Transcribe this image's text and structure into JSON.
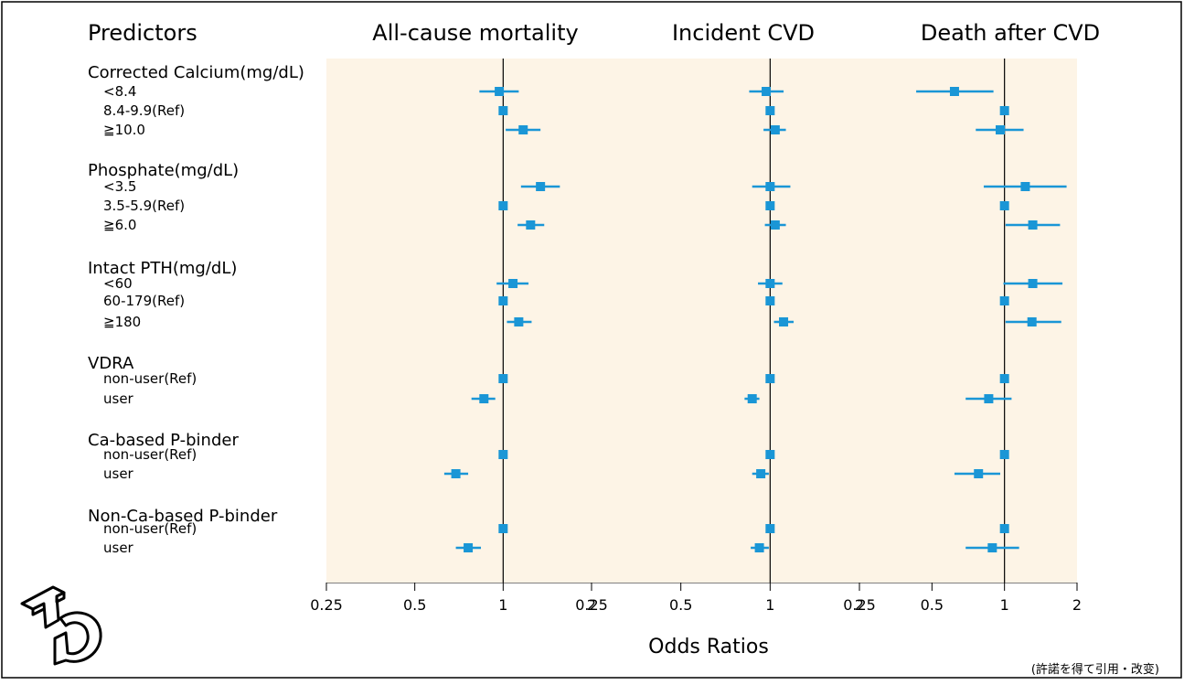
{
  "headers": {
    "predictors": "Predictors",
    "panels": [
      "All-cause mortality",
      "Incident CVD",
      "Death after CVD"
    ]
  },
  "groups": [
    {
      "title": "Corrected Calcium(mg/dL)",
      "rows": [
        "<8.4",
        "8.4-9.9(Ref)",
        "≧10.0"
      ]
    },
    {
      "title": "Phosphate(mg/dL)",
      "rows": [
        "<3.5",
        "3.5-5.9(Ref)",
        "≧6.0"
      ]
    },
    {
      "title": "Intact PTH(mg/dL)",
      "rows": [
        "<60",
        "60-179(Ref)",
        "≧180"
      ]
    },
    {
      "title": "VDRA",
      "rows": [
        "non-user(Ref)",
        "user"
      ]
    },
    {
      "title": "Ca-based P-binder",
      "rows": [
        "non-user(Ref)",
        "user"
      ]
    },
    {
      "title": "Non-Ca-based P-binder",
      "rows": [
        "non-user(Ref)",
        "user"
      ]
    }
  ],
  "x_axis_label": "Odds Ratios",
  "footnote": "(許諾を得て引用・改变)",
  "colors": {
    "marker": "#1a96d6",
    "panel_background": "#fdf4e6",
    "reference_line": "#000000"
  },
  "logo": {
    "icon": "logo-icon",
    "text": "TD"
  },
  "chart_data": {
    "type": "scatter",
    "subtype": "forest-plot",
    "x_scale": "log",
    "xlim": [
      0.25,
      2
    ],
    "x_ticks": [
      0.25,
      0.5,
      1,
      2
    ],
    "x_tick_labels": [
      "0.25",
      "0.5",
      "1",
      "2"
    ],
    "reference_value": 1,
    "grid": false,
    "xlabel": "Odds Ratios",
    "row_labels": [
      "<8.4",
      "8.4-9.9(Ref)",
      "≧10.0",
      "<3.5",
      "3.5-5.9(Ref)",
      "≧6.0",
      "<60",
      "60-179(Ref)",
      "≧180",
      "non-user(Ref)",
      "user",
      "non-user(Ref)",
      "user",
      "non-user(Ref)",
      "user"
    ],
    "panels": [
      {
        "name": "All-cause mortality",
        "points": [
          {
            "or": 0.97,
            "lo": 0.83,
            "hi": 1.13
          },
          {
            "or": 1.0
          },
          {
            "or": 1.17,
            "lo": 1.02,
            "hi": 1.34
          },
          {
            "or": 1.34,
            "lo": 1.15,
            "hi": 1.56
          },
          {
            "or": 1.0
          },
          {
            "or": 1.24,
            "lo": 1.12,
            "hi": 1.38
          },
          {
            "or": 1.08,
            "lo": 0.95,
            "hi": 1.22
          },
          {
            "or": 1.0
          },
          {
            "or": 1.13,
            "lo": 1.03,
            "hi": 1.25
          },
          {
            "or": 1.0
          },
          {
            "or": 0.86,
            "lo": 0.78,
            "hi": 0.94
          },
          {
            "or": 1.0
          },
          {
            "or": 0.69,
            "lo": 0.63,
            "hi": 0.76
          },
          {
            "or": 1.0
          },
          {
            "or": 0.76,
            "lo": 0.69,
            "hi": 0.84
          }
        ]
      },
      {
        "name": "Incident CVD",
        "points": [
          {
            "or": 0.97,
            "lo": 0.85,
            "hi": 1.11
          },
          {
            "or": 1.0
          },
          {
            "or": 1.04,
            "lo": 0.95,
            "hi": 1.13
          },
          {
            "or": 1.0,
            "lo": 0.87,
            "hi": 1.17
          },
          {
            "or": 1.0
          },
          {
            "or": 1.04,
            "lo": 0.96,
            "hi": 1.13
          },
          {
            "or": 1.0,
            "lo": 0.91,
            "hi": 1.1
          },
          {
            "or": 1.0
          },
          {
            "or": 1.11,
            "lo": 1.03,
            "hi": 1.2
          },
          {
            "or": 1.0
          },
          {
            "or": 0.87,
            "lo": 0.82,
            "hi": 0.92
          },
          {
            "or": 1.0
          },
          {
            "or": 0.93,
            "lo": 0.87,
            "hi": 0.99
          },
          {
            "or": 1.0
          },
          {
            "or": 0.92,
            "lo": 0.86,
            "hi": 0.99
          }
        ]
      },
      {
        "name": "Death after CVD",
        "points": [
          {
            "or": 0.62,
            "lo": 0.43,
            "hi": 0.9
          },
          {
            "or": 1.0
          },
          {
            "or": 0.96,
            "lo": 0.76,
            "hi": 1.2
          },
          {
            "or": 1.22,
            "lo": 0.82,
            "hi": 1.81
          },
          {
            "or": 1.0
          },
          {
            "or": 1.31,
            "lo": 1.01,
            "hi": 1.7
          },
          {
            "or": 1.31,
            "lo": 0.99,
            "hi": 1.74
          },
          {
            "or": 1.0
          },
          {
            "or": 1.3,
            "lo": 1.01,
            "hi": 1.72
          },
          {
            "or": 1.0
          },
          {
            "or": 0.86,
            "lo": 0.69,
            "hi": 1.07
          },
          {
            "or": 1.0
          },
          {
            "or": 0.78,
            "lo": 0.62,
            "hi": 0.96
          },
          {
            "or": 1.0
          },
          {
            "or": 0.89,
            "lo": 0.69,
            "hi": 1.15
          }
        ]
      }
    ]
  }
}
